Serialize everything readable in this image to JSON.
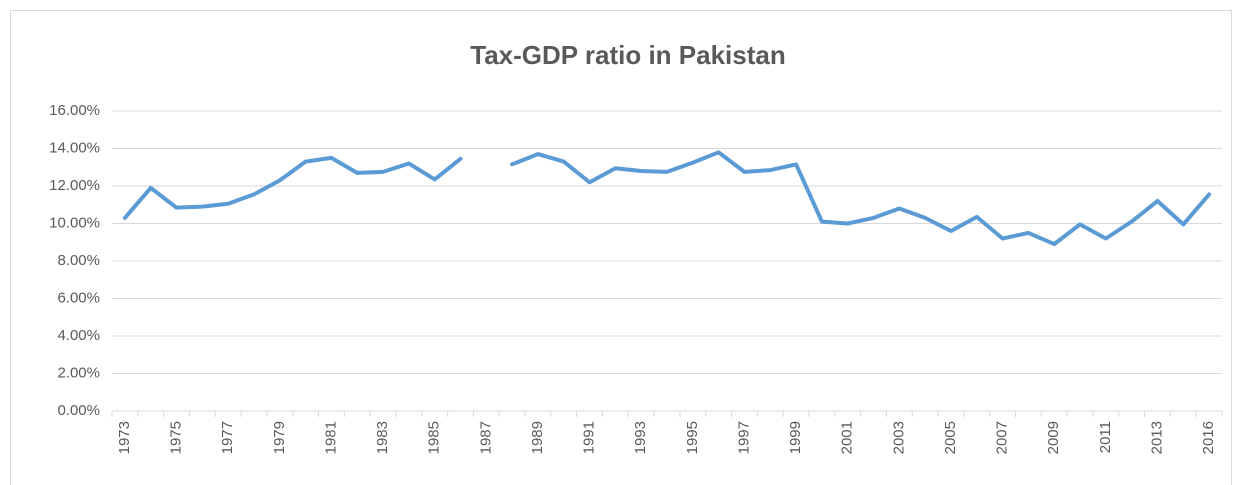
{
  "chart_data": {
    "type": "line",
    "title": "Tax-GDP ratio in Pakistan",
    "categories": [
      "1973",
      null,
      "1975",
      null,
      "1977",
      null,
      "1979",
      null,
      "1981",
      null,
      "1983",
      null,
      "1985",
      null,
      "1987",
      null,
      "1989",
      null,
      "1991",
      null,
      "1993",
      null,
      "1995",
      null,
      "1997",
      null,
      "1999",
      null,
      "2001",
      null,
      "2003",
      null,
      "2005",
      null,
      "2007",
      null,
      "2009",
      null,
      "2011",
      null,
      "2013",
      null,
      "2016"
    ],
    "values": [
      10.3,
      11.9,
      10.85,
      10.9,
      11.05,
      11.55,
      12.3,
      13.3,
      13.5,
      12.7,
      12.75,
      13.2,
      12.35,
      13.45,
      null,
      13.15,
      13.7,
      13.3,
      12.2,
      12.95,
      12.8,
      12.75,
      13.25,
      13.8,
      12.75,
      12.85,
      13.15,
      10.1,
      10.0,
      10.3,
      10.8,
      10.3,
      9.6,
      10.35,
      9.2,
      9.5,
      8.9,
      9.95,
      9.2,
      10.1,
      11.2,
      9.95,
      11.55
    ],
    "color": "#5b9bd5",
    "ylim": [
      0,
      16
    ],
    "yticks": [
      {
        "value": 0,
        "label": "0.00%"
      },
      {
        "value": 2,
        "label": "2.00%"
      },
      {
        "value": 4,
        "label": "4.00%"
      },
      {
        "value": 6,
        "label": "6.00%"
      },
      {
        "value": 8,
        "label": "8.00%"
      },
      {
        "value": 10,
        "label": "10.00%"
      },
      {
        "value": 12,
        "label": "12.00%"
      },
      {
        "value": 14,
        "label": "14.00%"
      },
      {
        "value": 16,
        "label": "16.00%"
      }
    ],
    "grid": true
  }
}
